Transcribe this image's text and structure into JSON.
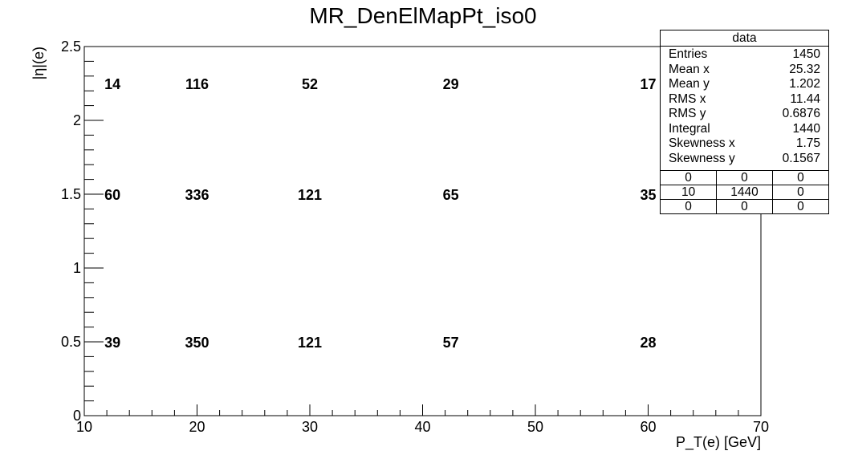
{
  "chart_data": {
    "type": "heatmap",
    "title": "MR_DenElMapPt_iso0",
    "xlabel": "P_T(e) [GeV]",
    "ylabel": "|η|(e)",
    "xlim": [
      10,
      70
    ],
    "ylim": [
      0,
      2.5
    ],
    "x_ticks": [
      "10",
      "20",
      "30",
      "40",
      "50",
      "60",
      "70"
    ],
    "y_ticks": [
      "0",
      "0.5",
      "1",
      "1.5",
      "2",
      "2.5"
    ],
    "x_bin_edges": [
      10,
      15,
      25,
      35,
      50,
      70
    ],
    "y_bin_edges": [
      0,
      1,
      2,
      2.5
    ],
    "cells": [
      {
        "x": 12.5,
        "y": 0.5,
        "value": 39
      },
      {
        "x": 20,
        "y": 0.5,
        "value": 350
      },
      {
        "x": 30,
        "y": 0.5,
        "value": 121
      },
      {
        "x": 42.5,
        "y": 0.5,
        "value": 57
      },
      {
        "x": 60,
        "y": 0.5,
        "value": 28
      },
      {
        "x": 12.5,
        "y": 1.5,
        "value": 60
      },
      {
        "x": 20,
        "y": 1.5,
        "value": 336
      },
      {
        "x": 30,
        "y": 1.5,
        "value": 121
      },
      {
        "x": 42.5,
        "y": 1.5,
        "value": 65
      },
      {
        "x": 60,
        "y": 1.5,
        "value": 35
      },
      {
        "x": 12.5,
        "y": 2.25,
        "value": 14
      },
      {
        "x": 20,
        "y": 2.25,
        "value": 116
      },
      {
        "x": 30,
        "y": 2.25,
        "value": 52
      },
      {
        "x": 42.5,
        "y": 2.25,
        "value": 29
      },
      {
        "x": 60,
        "y": 2.25,
        "value": 17
      }
    ],
    "grid": false
  },
  "stats": {
    "title": "data",
    "rows": [
      {
        "label": "Entries",
        "value": "1450"
      },
      {
        "label": "Mean x",
        "value": "25.32"
      },
      {
        "label": "Mean y",
        "value": "1.202"
      },
      {
        "label": "RMS x",
        "value": "11.44"
      },
      {
        "label": "RMS y",
        "value": "0.6876"
      },
      {
        "label": "Integral",
        "value": "1440"
      },
      {
        "label": "Skewness x",
        "value": "1.75"
      },
      {
        "label": "Skewness y",
        "value": "0.1567"
      }
    ],
    "grid": [
      [
        "0",
        "0",
        "0"
      ],
      [
        "10",
        "1440",
        "0"
      ],
      [
        "0",
        "0",
        "0"
      ]
    ]
  }
}
